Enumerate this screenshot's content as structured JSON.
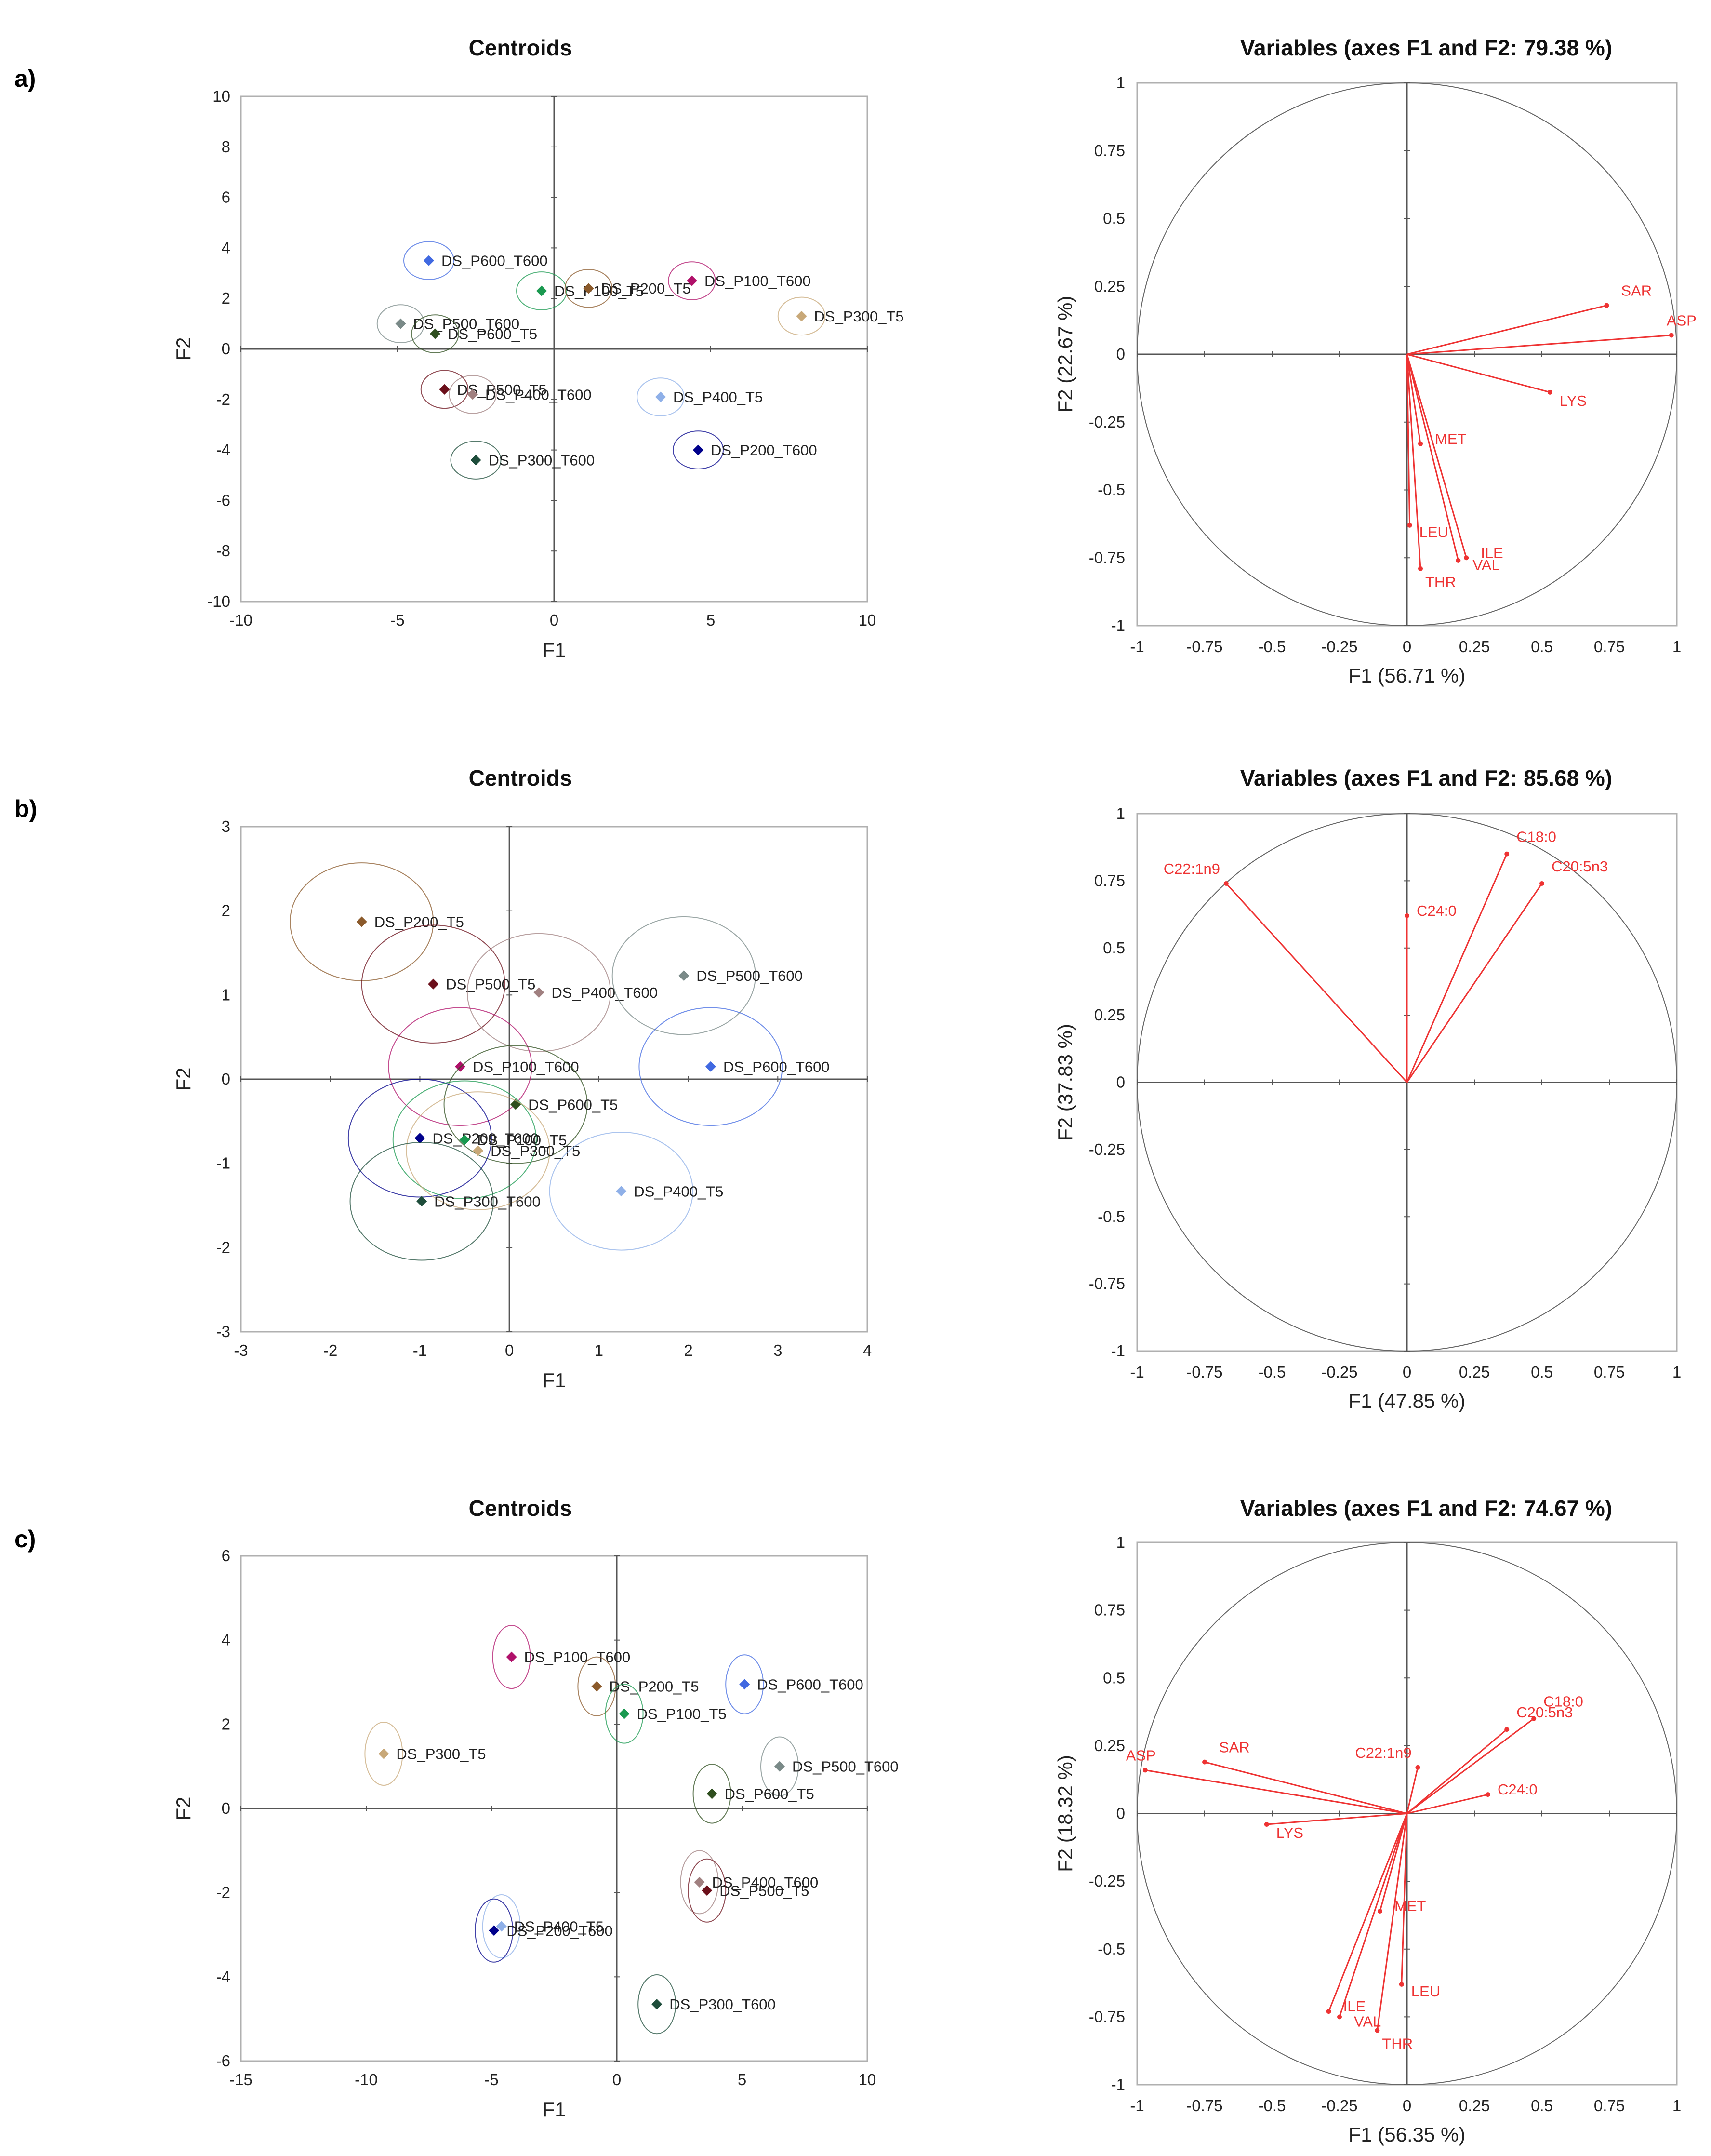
{
  "panels": [
    {
      "label": "a)",
      "centroids": {
        "type": "scatter",
        "title": "Centroids",
        "xlabel": "F1",
        "ylabel": "F2",
        "xlim": [
          -10,
          10
        ],
        "ylim": [
          -10,
          10
        ],
        "xticks": [
          -10,
          -5,
          0,
          5,
          10
        ],
        "yticks": [
          -10,
          -8,
          -6,
          -4,
          -2,
          0,
          2,
          4,
          6,
          8,
          10
        ],
        "points": [
          {
            "label": "DS_P600_T600",
            "x": -4.0,
            "y": 3.5,
            "rx": 0.8,
            "ry": 0.75,
            "color": "#4169e1"
          },
          {
            "label": "DS_P100_T5",
            "x": -0.4,
            "y": 2.3,
            "rx": 0.8,
            "ry": 0.75,
            "color": "#1a9950"
          },
          {
            "label": "DS_P200_T5",
            "x": 1.1,
            "y": 2.4,
            "rx": 0.75,
            "ry": 0.75,
            "color": "#8b5a2b"
          },
          {
            "label": "DS_P100_T600",
            "x": 4.4,
            "y": 2.7,
            "rx": 0.75,
            "ry": 0.75,
            "color": "#b0106a"
          },
          {
            "label": "DS_P300_T5",
            "x": 7.9,
            "y": 1.3,
            "rx": 0.75,
            "ry": 0.75,
            "color": "#c8a878"
          },
          {
            "label": "DS_P500_T600",
            "x": -4.9,
            "y": 1.0,
            "rx": 0.75,
            "ry": 0.75,
            "color": "#7a8a88"
          },
          {
            "label": "DS_P600_T5",
            "x": -3.8,
            "y": 0.6,
            "rx": 0.75,
            "ry": 0.75,
            "color": "#2f4f1f"
          },
          {
            "label": "DS_P500_T5",
            "x": -3.5,
            "y": -1.6,
            "rx": 0.75,
            "ry": 0.75,
            "color": "#6b0f1a"
          },
          {
            "label": "DS_P400_T600",
            "x": -2.6,
            "y": -1.8,
            "rx": 0.75,
            "ry": 0.75,
            "color": "#a08080"
          },
          {
            "label": "DS_P400_T5",
            "x": 3.4,
            "y": -1.9,
            "rx": 0.75,
            "ry": 0.75,
            "color": "#8fb0e8"
          },
          {
            "label": "DS_P200_T600",
            "x": 4.6,
            "y": -4.0,
            "rx": 0.8,
            "ry": 0.75,
            "color": "#00008b"
          },
          {
            "label": "DS_P300_T600",
            "x": -2.5,
            "y": -4.4,
            "rx": 0.8,
            "ry": 0.75,
            "color": "#1e4d3b"
          }
        ]
      },
      "variables": {
        "type": "scatter",
        "title": "Variables (axes F1 and F2: 79.38 %)",
        "xlabel": "F1 (56.71 %)",
        "ylabel": "F2 (22.67 %)",
        "xlim": [
          -1,
          1
        ],
        "ylim": [
          -1,
          1
        ],
        "ticks": [
          -1,
          -0.75,
          -0.5,
          -0.25,
          0,
          0.25,
          0.5,
          0.75,
          1
        ],
        "vectors": [
          {
            "label": "SAR",
            "x": 0.74,
            "y": 0.18
          },
          {
            "label": "ASP",
            "x": 0.98,
            "y": 0.07
          },
          {
            "label": "LYS",
            "x": 0.53,
            "y": -0.14
          },
          {
            "label": "MET",
            "x": 0.05,
            "y": -0.33
          },
          {
            "label": "LEU",
            "x": 0.01,
            "y": -0.63
          },
          {
            "label": "THR",
            "x": 0.05,
            "y": -0.79
          },
          {
            "label": "ILE",
            "x": 0.22,
            "y": -0.75
          },
          {
            "label": "VAL",
            "x": 0.19,
            "y": -0.76
          }
        ]
      }
    },
    {
      "label": "b)",
      "centroids": {
        "type": "scatter",
        "title": "Centroids",
        "xlabel": "F1",
        "ylabel": "F2",
        "xlim": [
          -3,
          4
        ],
        "ylim": [
          -3,
          3
        ],
        "xticks": [
          -3,
          -2,
          -1,
          0,
          1,
          2,
          3,
          4
        ],
        "yticks": [
          -3,
          -2,
          -1,
          0,
          1,
          2,
          3
        ],
        "points": [
          {
            "label": "DS_P200_T5",
            "x": -1.65,
            "y": 1.87,
            "rx": 0.8,
            "ry": 0.7,
            "color": "#8b5a2b"
          },
          {
            "label": "DS_P500_T5",
            "x": -0.85,
            "y": 1.13,
            "rx": 0.8,
            "ry": 0.7,
            "color": "#6b0f1a"
          },
          {
            "label": "DS_P400_T600",
            "x": 0.33,
            "y": 1.03,
            "rx": 0.8,
            "ry": 0.7,
            "color": "#a08080"
          },
          {
            "label": "DS_P500_T600",
            "x": 1.95,
            "y": 1.23,
            "rx": 0.8,
            "ry": 0.7,
            "color": "#7a8a88"
          },
          {
            "label": "DS_P100_T600",
            "x": -0.55,
            "y": 0.15,
            "rx": 0.8,
            "ry": 0.7,
            "color": "#b0106a"
          },
          {
            "label": "DS_P600_T600",
            "x": 2.25,
            "y": 0.15,
            "rx": 0.8,
            "ry": 0.7,
            "color": "#4169e1"
          },
          {
            "label": "DS_P600_T5",
            "x": 0.07,
            "y": -0.3,
            "rx": 0.8,
            "ry": 0.7,
            "color": "#2f4f1f"
          },
          {
            "label": "DS_P200_T600",
            "x": -1.0,
            "y": -0.7,
            "rx": 0.8,
            "ry": 0.7,
            "color": "#00008b"
          },
          {
            "label": "DS_P100_T5",
            "x": -0.5,
            "y": -0.72,
            "rx": 0.8,
            "ry": 0.7,
            "color": "#1a9950"
          },
          {
            "label": "DS_P300_T5",
            "x": -0.35,
            "y": -0.85,
            "rx": 0.8,
            "ry": 0.7,
            "color": "#c8a878"
          },
          {
            "label": "DS_P400_T5",
            "x": 1.25,
            "y": -1.33,
            "rx": 0.8,
            "ry": 0.7,
            "color": "#8fb0e8"
          },
          {
            "label": "DS_P300_T600",
            "x": -0.98,
            "y": -1.45,
            "rx": 0.8,
            "ry": 0.7,
            "color": "#1e4d3b"
          }
        ]
      },
      "variables": {
        "type": "scatter",
        "title": "Variables (axes F1 and F2: 85.68 %)",
        "xlabel": "F1 (47.85 %)",
        "ylabel": "F2 (37.83 %)",
        "xlim": [
          -1,
          1
        ],
        "ylim": [
          -1,
          1
        ],
        "ticks": [
          -1,
          -0.75,
          -0.5,
          -0.25,
          0,
          0.25,
          0.5,
          0.75,
          1
        ],
        "vectors": [
          {
            "label": "C22:1n9",
            "x": -0.67,
            "y": 0.74
          },
          {
            "label": "C24:0",
            "x": 0.0,
            "y": 0.62
          },
          {
            "label": "C18:0",
            "x": 0.37,
            "y": 0.85
          },
          {
            "label": "C20:5n3",
            "x": 0.5,
            "y": 0.74
          }
        ]
      }
    },
    {
      "label": "c)",
      "centroids": {
        "type": "scatter",
        "title": "Centroids",
        "xlabel": "F1",
        "ylabel": "F2",
        "xlim": [
          -15,
          10
        ],
        "ylim": [
          -6,
          6
        ],
        "xticks": [
          -15,
          -10,
          -5,
          0,
          5,
          10
        ],
        "yticks": [
          -6,
          -4,
          -2,
          0,
          2,
          4,
          6
        ],
        "points": [
          {
            "label": "DS_P100_T600",
            "x": -4.2,
            "y": 3.6,
            "rx": 0.75,
            "ry": 0.75,
            "color": "#b0106a"
          },
          {
            "label": "DS_P200_T5",
            "x": -0.8,
            "y": 2.9,
            "rx": 0.75,
            "ry": 0.7,
            "color": "#8b5a2b"
          },
          {
            "label": "DS_P600_T600",
            "x": 5.1,
            "y": 2.95,
            "rx": 0.75,
            "ry": 0.7,
            "color": "#4169e1"
          },
          {
            "label": "DS_P100_T5",
            "x": 0.3,
            "y": 2.25,
            "rx": 0.75,
            "ry": 0.7,
            "color": "#1a9950"
          },
          {
            "label": "DS_P300_T5",
            "x": -9.3,
            "y": 1.3,
            "rx": 0.75,
            "ry": 0.75,
            "color": "#c8a878"
          },
          {
            "label": "DS_P500_T600",
            "x": 6.5,
            "y": 1.0,
            "rx": 0.75,
            "ry": 0.7,
            "color": "#7a8a88"
          },
          {
            "label": "DS_P600_T5",
            "x": 3.8,
            "y": 0.35,
            "rx": 0.75,
            "ry": 0.7,
            "color": "#2f4f1f"
          },
          {
            "label": "DS_P400_T600",
            "x": 3.3,
            "y": -1.75,
            "rx": 0.75,
            "ry": 0.75,
            "color": "#a08080"
          },
          {
            "label": "DS_P500_T5",
            "x": 3.6,
            "y": -1.95,
            "rx": 0.75,
            "ry": 0.75,
            "color": "#6b0f1a"
          },
          {
            "label": "DS_P400_T5",
            "x": -4.6,
            "y": -2.8,
            "rx": 0.75,
            "ry": 0.75,
            "color": "#8fb0e8"
          },
          {
            "label": "DS_P200_T600",
            "x": -4.9,
            "y": -2.9,
            "rx": 0.75,
            "ry": 0.75,
            "color": "#00008b"
          },
          {
            "label": "DS_P300_T600",
            "x": 1.6,
            "y": -4.65,
            "rx": 0.75,
            "ry": 0.7,
            "color": "#1e4d3b"
          }
        ]
      },
      "variables": {
        "type": "scatter",
        "title": "Variables (axes F1 and F2: 74.67 %)",
        "xlabel": "F1 (56.35 %)",
        "ylabel": "F2 (18.32 %)",
        "xlim": [
          -1,
          1
        ],
        "ylim": [
          -1,
          1
        ],
        "ticks": [
          -1,
          -0.75,
          -0.5,
          -0.25,
          0,
          0.25,
          0.5,
          0.75,
          1
        ],
        "vectors": [
          {
            "label": "ASP",
            "x": -0.97,
            "y": 0.16
          },
          {
            "label": "SAR",
            "x": -0.75,
            "y": 0.19
          },
          {
            "label": "LYS",
            "x": -0.52,
            "y": -0.04
          },
          {
            "label": "C22:1n9",
            "x": 0.04,
            "y": 0.17
          },
          {
            "label": "C20:5n3",
            "x": 0.37,
            "y": 0.31
          },
          {
            "label": "C18:0",
            "x": 0.47,
            "y": 0.35
          },
          {
            "label": "C24:0",
            "x": 0.3,
            "y": 0.07
          },
          {
            "label": "MET",
            "x": -0.1,
            "y": -0.36
          },
          {
            "label": "LEU",
            "x": -0.02,
            "y": -0.63
          },
          {
            "label": "ILE",
            "x": -0.29,
            "y": -0.73
          },
          {
            "label": "VAL",
            "x": -0.25,
            "y": -0.75
          },
          {
            "label": "THR",
            "x": -0.11,
            "y": -0.8
          }
        ]
      }
    }
  ]
}
